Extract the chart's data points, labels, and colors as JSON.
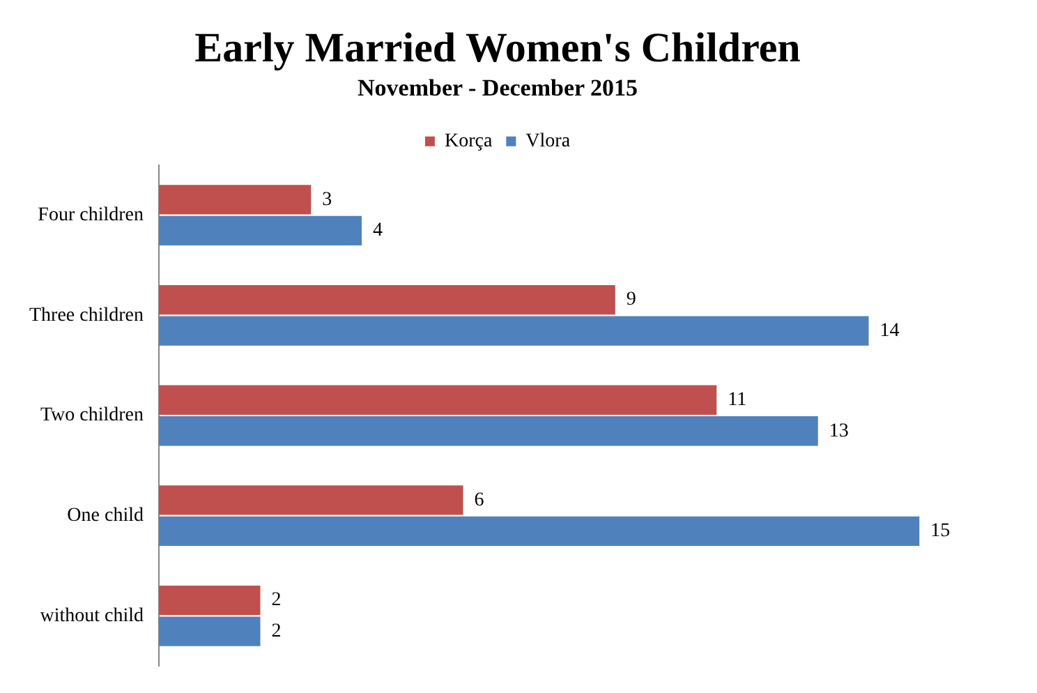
{
  "chart_data": {
    "type": "bar",
    "orientation": "horizontal",
    "title": "Early Married Women's Children",
    "subtitle": "November - December 2015",
    "categories": [
      "Four children",
      "Three children",
      "Two children",
      "One child",
      "without child"
    ],
    "series": [
      {
        "name": "Korça",
        "color": "#c0504d",
        "values": [
          3,
          9,
          11,
          6,
          2
        ]
      },
      {
        "name": "Vlora",
        "color": "#4f81bd",
        "values": [
          4,
          14,
          13,
          15,
          2
        ]
      }
    ],
    "data_labels": true,
    "legend": "top",
    "grid": false
  }
}
